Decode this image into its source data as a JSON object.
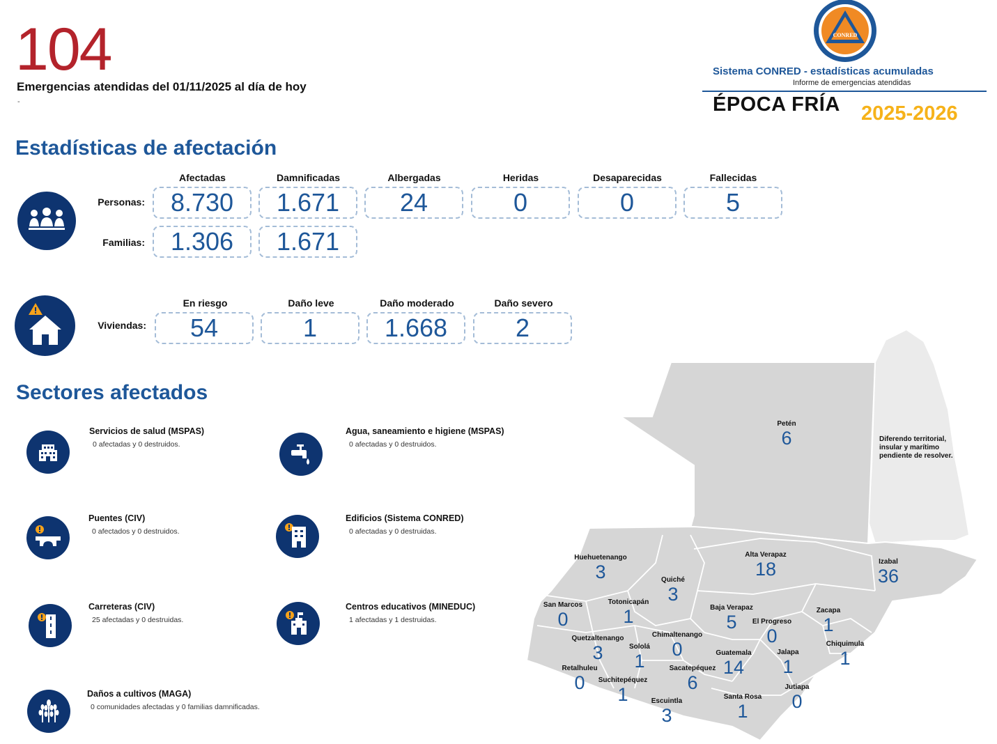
{
  "header": {
    "total": "104",
    "subtitle": "Emergencias atendidas del 01/11/2025 al día de hoy",
    "dash": "-"
  },
  "logo": {
    "seal_text": "CONRED",
    "system": "Sistema CONRED - estadísticas acumuladas",
    "report": "Informe de emergencias atendidas",
    "season": "ÉPOCA FRÍA",
    "years": "2025-2026",
    "colors": {
      "navy": "#1e5799",
      "orange": "#f08a24",
      "yellow": "#f6b21a"
    }
  },
  "stats": {
    "title": "Estadísticas de afectación",
    "people_columns": [
      "Afectadas",
      "Damnificadas",
      "Albergadas",
      "Heridas",
      "Desaparecidas",
      "Fallecidas"
    ],
    "personas_label": "Personas:",
    "personas": [
      "8.730",
      "1.671",
      "24",
      "0",
      "0",
      "5"
    ],
    "familias_label": "Familias:",
    "familias": [
      "1.306",
      "1.671"
    ],
    "house_columns": [
      "En riesgo",
      "Daño leve",
      "Daño moderado",
      "Daño severo"
    ],
    "viviendas_label": "Viviendas:",
    "viviendas": [
      "54",
      "1",
      "1.668",
      "2"
    ]
  },
  "sectors": {
    "title": "Sectores afectados",
    "items": [
      {
        "icon": "hospital-icon",
        "title": "Servicios de salud (MSPAS)",
        "desc": "0 afectadas y 0 destruidos."
      },
      {
        "icon": "water-tap-icon",
        "title": "Agua, saneamiento e higiene (MSPAS)",
        "desc": "0 afectadas y 0 destruidos."
      },
      {
        "icon": "bridge-icon",
        "title": "Puentes (CIV)",
        "desc": "0 afectados y 0 destruidos."
      },
      {
        "icon": "building-icon",
        "title": "Edificios (Sistema CONRED)",
        "desc": "0 afectadas y 0 destruidas."
      },
      {
        "icon": "road-icon",
        "title": "Carreteras (CIV)",
        "desc": "25 afectadas y 0 destruidas."
      },
      {
        "icon": "school-icon",
        "title": "Centros educativos (MINEDUC)",
        "desc": "1 afectadas y 1 destruidas."
      },
      {
        "icon": "crops-icon",
        "title": "Daños a cultivos (MAGA)",
        "desc": "0 comunidades afectadas y 0 familias damnificadas."
      }
    ]
  },
  "map": {
    "belize_note": "Diferendo territorial, insular y marítimo pendiente de resolver.",
    "departments": [
      {
        "name": "Petén",
        "value": "6"
      },
      {
        "name": "Huehuetenango",
        "value": "3"
      },
      {
        "name": "Alta Verapaz",
        "value": "18"
      },
      {
        "name": "Izabal",
        "value": "36"
      },
      {
        "name": "Quiché",
        "value": "3"
      },
      {
        "name": "San Marcos",
        "value": "0"
      },
      {
        "name": "Totonicapán",
        "value": "1"
      },
      {
        "name": "Baja Verapaz",
        "value": "5"
      },
      {
        "name": "Zacapa",
        "value": "1"
      },
      {
        "name": "El Progreso",
        "value": "0"
      },
      {
        "name": "Quetzaltenango",
        "value": "3"
      },
      {
        "name": "Chimaltenango",
        "value": "0"
      },
      {
        "name": "Sololá",
        "value": "1"
      },
      {
        "name": "Guatemala",
        "value": "14"
      },
      {
        "name": "Jalapa",
        "value": "1"
      },
      {
        "name": "Chiquimula",
        "value": "1"
      },
      {
        "name": "Retalhuleu",
        "value": "0"
      },
      {
        "name": "Suchitepéquez",
        "value": "1"
      },
      {
        "name": "Sacatepéquez",
        "value": "6"
      },
      {
        "name": "Santa Rosa",
        "value": "1"
      },
      {
        "name": "Jutiapa",
        "value": "0"
      },
      {
        "name": "Escuintla",
        "value": "3"
      }
    ]
  }
}
